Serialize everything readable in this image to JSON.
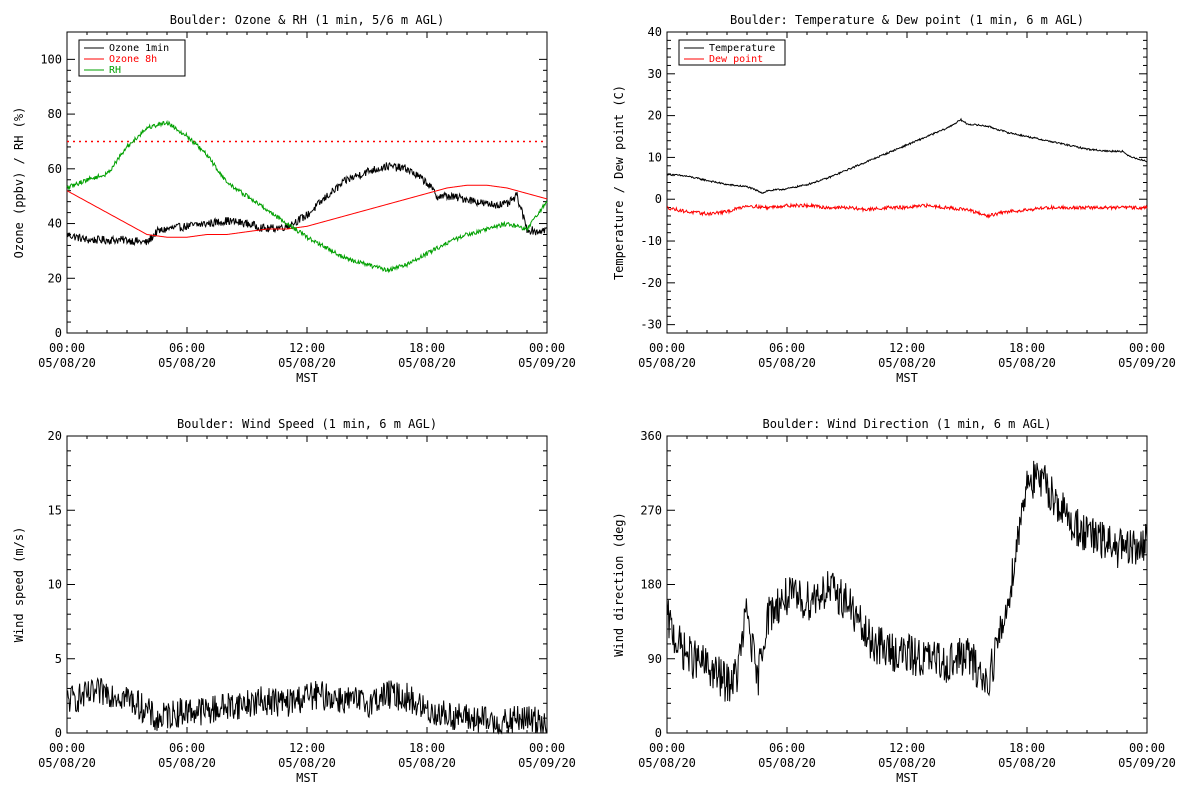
{
  "chart_data": [
    {
      "id": "ozone",
      "type": "line",
      "title": "Boulder: Ozone & RH (1 min, 5/6 m AGL)",
      "xlabel": "MST",
      "ylabel": "Ozone (ppbv) / RH (%)",
      "xlim": [
        0,
        24
      ],
      "ylim": [
        0,
        110
      ],
      "x_ticks": [
        {
          "value": 0,
          "time": "00:00",
          "date": "05/08/20"
        },
        {
          "value": 6,
          "time": "06:00",
          "date": "05/08/20"
        },
        {
          "value": 12,
          "time": "12:00",
          "date": "05/08/20"
        },
        {
          "value": 18,
          "time": "18:00",
          "date": "05/08/20"
        },
        {
          "value": 24,
          "time": "00:00",
          "date": "05/09/20"
        }
      ],
      "y_ticks": [
        0,
        20,
        40,
        60,
        80,
        100
      ],
      "legend_position": "top-left",
      "reference_lines": [
        {
          "y": 70,
          "color": "#ff0000",
          "style": "dotted"
        }
      ],
      "series": [
        {
          "name": "Ozone 1min",
          "color": "#000000",
          "noise": 1.5,
          "x": [
            0,
            1,
            2,
            3,
            4,
            4.5,
            5,
            6,
            7,
            8,
            9,
            10,
            11,
            12,
            13,
            14,
            15,
            16,
            17,
            18,
            18.5,
            19,
            20,
            21,
            22,
            22.5,
            23,
            23.5,
            24
          ],
          "y": [
            36,
            34,
            34,
            34,
            33,
            37,
            38,
            39,
            40,
            41,
            40,
            38,
            39,
            43,
            50,
            56,
            59,
            61,
            60,
            55,
            50,
            50,
            49,
            47,
            47,
            50,
            38,
            37,
            38
          ]
        },
        {
          "name": "Ozone 8h",
          "color": "#ff0000",
          "noise": 0,
          "x": [
            0,
            1,
            2,
            3,
            4,
            5,
            6,
            7,
            8,
            9,
            10,
            11,
            12,
            13,
            14,
            15,
            16,
            17,
            18,
            19,
            20,
            21,
            22,
            23,
            24
          ],
          "y": [
            52,
            48,
            44,
            40,
            36,
            35,
            35,
            36,
            36,
            37,
            38,
            38,
            39,
            41,
            43,
            45,
            47,
            49,
            51,
            53,
            54,
            54,
            53,
            51,
            49
          ]
        },
        {
          "name": "RH",
          "color": "#00a000",
          "noise": 0.8,
          "x": [
            0,
            1,
            2,
            3,
            4,
            5,
            6,
            7,
            8,
            9,
            10,
            11,
            12,
            13,
            14,
            15,
            16,
            17,
            18,
            19,
            20,
            21,
            22,
            23,
            24
          ],
          "y": [
            53,
            56,
            58,
            68,
            75,
            77,
            72,
            65,
            55,
            50,
            45,
            40,
            35,
            31,
            27,
            25,
            23,
            25,
            29,
            33,
            36,
            38,
            40,
            38,
            48
          ]
        }
      ]
    },
    {
      "id": "temperature",
      "type": "line",
      "title": "Boulder: Temperature & Dew point (1 min, 6 m AGL)",
      "xlabel": "MST",
      "ylabel": "Temperature / Dew point (C)",
      "xlim": [
        0,
        24
      ],
      "ylim": [
        -32,
        40
      ],
      "x_ticks": [
        {
          "value": 0,
          "time": "00:00",
          "date": "05/08/20"
        },
        {
          "value": 6,
          "time": "06:00",
          "date": "05/08/20"
        },
        {
          "value": 12,
          "time": "12:00",
          "date": "05/08/20"
        },
        {
          "value": 18,
          "time": "18:00",
          "date": "05/08/20"
        },
        {
          "value": 24,
          "time": "00:00",
          "date": "05/09/20"
        }
      ],
      "y_ticks": [
        -30,
        -20,
        -10,
        0,
        10,
        20,
        30,
        40
      ],
      "legend_position": "top-left",
      "reference_lines": [],
      "series": [
        {
          "name": "Temperature",
          "color": "#000000",
          "noise": 0.2,
          "x": [
            0,
            1,
            2,
            3,
            4,
            4.8,
            5,
            6,
            7,
            8,
            9,
            10,
            11,
            12,
            13,
            14,
            14.7,
            15,
            16,
            17,
            18,
            19,
            20,
            21,
            22,
            22.8,
            23,
            24
          ],
          "y": [
            6,
            5.5,
            4.5,
            3.5,
            3,
            1.5,
            2,
            2.5,
            3.5,
            5,
            7,
            9,
            11,
            13,
            15,
            17,
            19,
            18,
            17.5,
            16,
            15,
            14,
            13,
            12,
            11.5,
            11.5,
            10.5,
            9
          ]
        },
        {
          "name": "Dew point",
          "color": "#ff0000",
          "noise": 0.4,
          "x": [
            0,
            1,
            2,
            3,
            4,
            5,
            6,
            7,
            8,
            9,
            10,
            11,
            12,
            13,
            14,
            15,
            16,
            17,
            18,
            19,
            20,
            21,
            22,
            23,
            24
          ],
          "y": [
            -2,
            -3,
            -3.5,
            -3,
            -1.5,
            -2,
            -1.5,
            -1.5,
            -2,
            -2,
            -2.5,
            -2,
            -2,
            -1.5,
            -2,
            -2.5,
            -4,
            -3,
            -2.5,
            -2,
            -2,
            -2,
            -2,
            -2,
            -2
          ]
        }
      ]
    },
    {
      "id": "wind-speed",
      "type": "line",
      "title": "Boulder: Wind Speed (1 min, 6 m AGL)",
      "xlabel": "MST",
      "ylabel": "Wind speed (m/s)",
      "xlim": [
        0,
        24
      ],
      "ylim": [
        0,
        20
      ],
      "x_ticks": [
        {
          "value": 0,
          "time": "00:00",
          "date": "05/08/20"
        },
        {
          "value": 6,
          "time": "06:00",
          "date": "05/08/20"
        },
        {
          "value": 12,
          "time": "12:00",
          "date": "05/08/20"
        },
        {
          "value": 18,
          "time": "18:00",
          "date": "05/08/20"
        },
        {
          "value": 24,
          "time": "00:00",
          "date": "05/09/20"
        }
      ],
      "y_ticks": [
        0,
        5,
        10,
        15,
        20
      ],
      "legend_position": "none",
      "reference_lines": [],
      "series": [
        {
          "color": "#000000",
          "noise": 1.0,
          "x": [
            0,
            1,
            2,
            3,
            4,
            4.5,
            5,
            6,
            7,
            8,
            9,
            10,
            11,
            12,
            13,
            14,
            15,
            16,
            17,
            18,
            19,
            20,
            21,
            22,
            22.5,
            23,
            24
          ],
          "y": [
            2.2,
            2.5,
            2.8,
            2.4,
            1.5,
            0.8,
            1.2,
            1.5,
            1.5,
            1.8,
            2.0,
            2.2,
            2.0,
            2.5,
            2.5,
            2.2,
            2.0,
            2.6,
            2.4,
            1.5,
            1.2,
            1.0,
            0.8,
            0.6,
            1.0,
            0.9,
            0.8
          ]
        }
      ]
    },
    {
      "id": "wind-direction",
      "type": "line",
      "title": "Boulder: Wind Direction (1 min, 6 m AGL)",
      "xlabel": "MST",
      "ylabel": "Wind direction (deg)",
      "xlim": [
        0,
        24
      ],
      "ylim": [
        0,
        360
      ],
      "x_ticks": [
        {
          "value": 0,
          "time": "00:00",
          "date": "05/08/20"
        },
        {
          "value": 6,
          "time": "06:00",
          "date": "05/08/20"
        },
        {
          "value": 12,
          "time": "12:00",
          "date": "05/08/20"
        },
        {
          "value": 18,
          "time": "18:00",
          "date": "05/08/20"
        },
        {
          "value": 24,
          "time": "00:00",
          "date": "05/09/20"
        }
      ],
      "y_ticks": [
        0,
        90,
        180,
        270,
        360
      ],
      "legend_position": "none",
      "reference_lines": [],
      "series": [
        {
          "color": "#000000",
          "noise": 25,
          "x": [
            0,
            0.5,
            1,
            2,
            3,
            3.5,
            4,
            4.5,
            5,
            5.5,
            6,
            7,
            8,
            9,
            10,
            11,
            12,
            13,
            14,
            15,
            16,
            17,
            18,
            19,
            20,
            21,
            22,
            23,
            24
          ],
          "y": [
            140,
            110,
            95,
            80,
            60,
            70,
            150,
            60,
            140,
            155,
            165,
            160,
            175,
            160,
            115,
            100,
            95,
            90,
            85,
            95,
            60,
            150,
            310,
            300,
            260,
            240,
            230,
            220,
            230
          ]
        }
      ]
    }
  ]
}
